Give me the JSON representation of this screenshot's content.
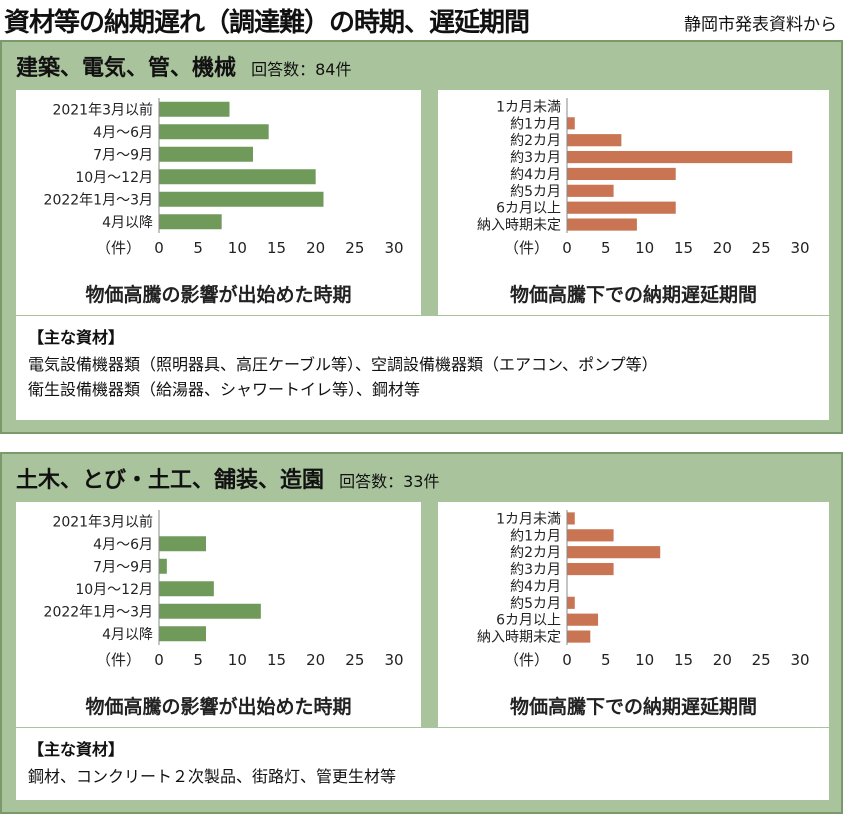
{
  "title": "資材等の納期遅れ（調達難）の時期、遅延期間",
  "source": "静岡市発表資料から",
  "sections": [
    {
      "title": "建築、電気、管、機械",
      "count": "回答数：84件",
      "timing_caption": "物価高騰の影響が出始めた時期",
      "delay_caption": "物価高騰下での納期遅延期間",
      "materials_heading": "【主な資材】",
      "materials_lines": [
        "電気設備機器類（照明器具、高圧ケーブル等）、空調設備機器類（エアコン、ポンプ等）",
        "衛生設備機器類（給湯器、シャワートイレ等）、鋼材等"
      ]
    },
    {
      "title": "土木、とび・土工、舗装、造園",
      "count": "回答数：33件",
      "timing_caption": "物価高騰の影響が出始めた時期",
      "delay_caption": "物価高騰下での納期遅延期間",
      "materials_heading": "【主な資材】",
      "materials_lines": [
        "鋼材、コンクリート２次製品、街路灯、管更生材等"
      ]
    }
  ],
  "chart_data": [
    {
      "type": "bar",
      "orientation": "horizontal",
      "unit": "（件）",
      "categories": [
        "2021年3月以前",
        "4月～6月",
        "7月～9月",
        "10月～12月",
        "2022年1月～3月",
        "4月以降"
      ],
      "values": [
        9,
        14,
        12,
        20,
        21,
        8
      ],
      "xlim": [
        0,
        30
      ],
      "ticks": [
        0,
        5,
        10,
        15,
        20,
        25,
        30
      ],
      "color": "#6f9a5a"
    },
    {
      "type": "bar",
      "orientation": "horizontal",
      "unit": "（件）",
      "categories": [
        "1カ月未満",
        "約1カ月",
        "約2カ月",
        "約3カ月",
        "約4カ月",
        "約5カ月",
        "6カ月以上",
        "納入時期未定"
      ],
      "values": [
        0,
        1,
        7,
        29,
        14,
        6,
        14,
        9
      ],
      "xlim": [
        0,
        30
      ],
      "ticks": [
        0,
        5,
        10,
        15,
        20,
        25,
        30
      ],
      "color": "#c97453"
    },
    {
      "type": "bar",
      "orientation": "horizontal",
      "unit": "（件）",
      "categories": [
        "2021年3月以前",
        "4月～6月",
        "7月～9月",
        "10月～12月",
        "2022年1月～3月",
        "4月以降"
      ],
      "values": [
        0,
        6,
        1,
        7,
        13,
        6
      ],
      "xlim": [
        0,
        30
      ],
      "ticks": [
        0,
        5,
        10,
        15,
        20,
        25,
        30
      ],
      "color": "#6f9a5a"
    },
    {
      "type": "bar",
      "orientation": "horizontal",
      "unit": "（件）",
      "categories": [
        "1カ月未満",
        "約1カ月",
        "約2カ月",
        "約3カ月",
        "約4カ月",
        "約5カ月",
        "6カ月以上",
        "納入時期未定"
      ],
      "values": [
        1,
        6,
        12,
        6,
        0,
        1,
        4,
        3
      ],
      "xlim": [
        0,
        30
      ],
      "ticks": [
        0,
        5,
        10,
        15,
        20,
        25,
        30
      ],
      "color": "#c97453"
    }
  ]
}
